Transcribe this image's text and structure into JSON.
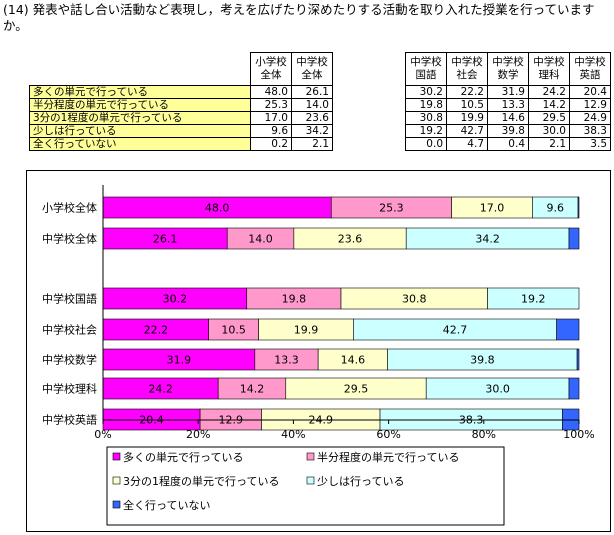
{
  "question": "(14) 発表や話し合い活動など表現し，考えを広げたり深めたりする活動を取り入れた授業を行っていますか。",
  "colors": {
    "category_0": "#ff00ff",
    "category_1": "#ff99cc",
    "category_2": "#ffffcc",
    "category_3": "#ccffff",
    "category_4": "#3366ff",
    "table_label_bg": "#ffff99"
  },
  "table": {
    "columns": [
      {
        "line1": "小学校",
        "line2": "全体"
      },
      {
        "line1": "中学校",
        "line2": "全体"
      },
      {
        "line1": "中学校",
        "line2": "国語"
      },
      {
        "line1": "中学校",
        "line2": "社会"
      },
      {
        "line1": "中学校",
        "line2": "数学"
      },
      {
        "line1": "中学校",
        "line2": "理科"
      },
      {
        "line1": "中学校",
        "line2": "英語"
      }
    ],
    "rows": [
      {
        "label": "多くの単元で行っている",
        "values": [
          "48.0",
          "26.1",
          "30.2",
          "22.2",
          "31.9",
          "24.2",
          "20.4"
        ]
      },
      {
        "label": "半分程度の単元で行っている",
        "values": [
          "25.3",
          "14.0",
          "19.8",
          "10.5",
          "13.3",
          "14.2",
          "12.9"
        ]
      },
      {
        "label": "3分の1程度の単元で行っている",
        "values": [
          "17.0",
          "23.6",
          "30.8",
          "19.9",
          "14.6",
          "29.5",
          "24.9"
        ]
      },
      {
        "label": "少しは行っている",
        "values": [
          "9.6",
          "34.2",
          "19.2",
          "42.7",
          "39.8",
          "30.0",
          "38.3"
        ]
      },
      {
        "label": "全く行っていない",
        "values": [
          "0.2",
          "2.1",
          "0.0",
          "4.7",
          "0.4",
          "2.1",
          "3.5"
        ]
      }
    ]
  },
  "chart_data": {
    "type": "bar",
    "orientation": "horizontal",
    "stacked": "percent",
    "categories": [
      "小学校全体",
      "中学校全体",
      "中学校国語",
      "中学校社会",
      "中学校数学",
      "中学校理科",
      "中学校英語"
    ],
    "series": [
      {
        "name": "多くの単元で行っている",
        "values": [
          48.0,
          26.1,
          30.2,
          22.2,
          31.9,
          24.2,
          20.4
        ]
      },
      {
        "name": "半分程度の単元で行っている",
        "values": [
          25.3,
          14.0,
          19.8,
          10.5,
          13.3,
          14.2,
          12.9
        ]
      },
      {
        "name": "3分の1程度の単元で行っている",
        "values": [
          17.0,
          23.6,
          30.8,
          19.9,
          14.6,
          29.5,
          24.9
        ]
      },
      {
        "name": "少しは行っている",
        "values": [
          9.6,
          34.2,
          19.2,
          42.7,
          39.8,
          30.0,
          38.3
        ]
      },
      {
        "name": "全く行っていない",
        "values": [
          0.2,
          2.1,
          0.0,
          4.7,
          0.4,
          2.1,
          3.5
        ]
      }
    ],
    "data_labels": [
      [
        "48.0",
        "26.1",
        "30.2",
        "22.2",
        "31.9",
        "24.2",
        "20.4"
      ],
      [
        "25.3",
        "14.0",
        "19.8",
        "10.5",
        "13.3",
        "14.2",
        "12.9"
      ],
      [
        "17.0",
        "23.6",
        "30.8",
        "19.9",
        "14.6",
        "29.5",
        "24.9"
      ],
      [
        "9.6",
        "34.2",
        "19.2",
        "42.7",
        "39.8",
        "30.0",
        "38.3"
      ],
      [
        "",
        "",
        "",
        "",
        "",
        "",
        ""
      ]
    ],
    "x_ticks": [
      "0%",
      "20%",
      "40%",
      "60%",
      "80%",
      "100%"
    ],
    "xlim": [
      0,
      100
    ],
    "legend_position": "bottom",
    "grid": false
  }
}
